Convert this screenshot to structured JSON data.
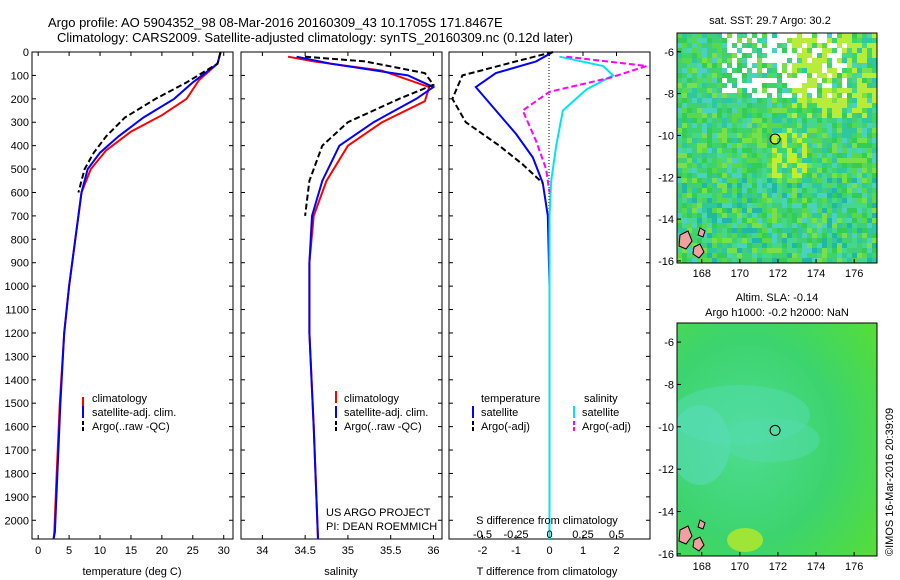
{
  "header": {
    "line1": "Argo profile: AO 5904352_98 08-Mar-2016 20160309_43 10.1705S 171.8467E",
    "line2": "Climatology: CARS2009. Satellite-adjusted climatology: synTS_20160309.nc (0.12d later)"
  },
  "colors": {
    "climatology": "#ff0000",
    "satellite": "#0000ff",
    "argo": "#000000",
    "satellite_salinity": "#00e5ee",
    "argo_salinity": "#ff00ff"
  },
  "chart_data": [
    {
      "type": "line",
      "panel": "temperature",
      "xlabel": "temperature (deg C)",
      "ylabel": "",
      "xlim": [
        -1,
        31.5
      ],
      "ylim": [
        2080,
        0
      ],
      "xticks": [
        "0",
        "5",
        "10",
        "15",
        "20",
        "25",
        "30"
      ],
      "yticks": [
        "0",
        "100",
        "200",
        "300",
        "400",
        "500",
        "600",
        "700",
        "800",
        "900",
        "1000",
        "1100",
        "1200",
        "1300",
        "1400",
        "1500",
        "1600",
        "1700",
        "1800",
        "1900",
        "2000"
      ],
      "legend": [
        "climatology",
        "satellite-adj. clim.",
        "Argo(..raw -QC)"
      ],
      "series": [
        {
          "name": "climatology",
          "style": "solid",
          "x": [
            29.5,
            29,
            26,
            24,
            20,
            15,
            11,
            8.5,
            7,
            6,
            5,
            4.2,
            3.5,
            3,
            2.6,
            2.5
          ],
          "y": [
            0,
            50,
            120,
            200,
            270,
            340,
            420,
            500,
            600,
            800,
            1000,
            1200,
            1500,
            1800,
            2050,
            2080
          ]
        },
        {
          "name": "satellite-adj. clim.",
          "style": "solid",
          "x": [
            29.5,
            29,
            25,
            22,
            17,
            13,
            10,
            8,
            7,
            6,
            5,
            4.2,
            3.6,
            3.1,
            2.7,
            2.5
          ],
          "y": [
            0,
            50,
            130,
            200,
            280,
            360,
            430,
            500,
            600,
            800,
            1000,
            1200,
            1500,
            1800,
            2050,
            2080
          ]
        },
        {
          "name": "Argo(..raw -QC)",
          "style": "dashed",
          "x": [
            29.5,
            29,
            24,
            19,
            14,
            11,
            9,
            7.5,
            6.5
          ],
          "y": [
            0,
            50,
            130,
            200,
            280,
            360,
            430,
            500,
            600
          ]
        }
      ]
    },
    {
      "type": "line",
      "panel": "salinity",
      "xlabel": "salinity",
      "ylabel": "",
      "xlim": [
        33.75,
        36.1
      ],
      "ylim": [
        2080,
        0
      ],
      "xticks": [
        "34",
        "34.5",
        "35",
        "35.5",
        "36"
      ],
      "legend": [
        "climatology",
        "satellite-adj. clim.",
        "Argo(..raw -QC)"
      ],
      "series": [
        {
          "name": "climatology",
          "style": "solid",
          "x": [
            34.3,
            34.6,
            35.4,
            35.95,
            35.9,
            35.4,
            35,
            34.75,
            34.6,
            34.55,
            34.55,
            34.6,
            34.65
          ],
          "y": [
            20,
            40,
            80,
            150,
            210,
            300,
            400,
            550,
            700,
            900,
            1200,
            1600,
            2080
          ]
        },
        {
          "name": "satellite-adj. clim.",
          "style": "solid",
          "x": [
            34.4,
            34.8,
            35.7,
            36.0,
            35.8,
            35.3,
            34.9,
            34.7,
            34.58,
            34.55,
            34.55,
            34.6,
            34.65
          ],
          "y": [
            20,
            50,
            100,
            150,
            200,
            300,
            400,
            550,
            700,
            900,
            1200,
            1600,
            2080
          ]
        },
        {
          "name": "Argo(..raw -QC)",
          "style": "dashed",
          "x": [
            34.5,
            35.2,
            35.9,
            36.0,
            35.6,
            35.0,
            34.7,
            34.55,
            34.5
          ],
          "y": [
            20,
            40,
            90,
            140,
            200,
            300,
            400,
            550,
            700
          ]
        }
      ],
      "annotation": [
        "US ARGO PROJECT",
        "PI: DEAN ROEMMICH"
      ]
    },
    {
      "type": "line",
      "panel": "difference",
      "xlabel": "T difference from climatology",
      "xlabel2": "S difference from climatology",
      "xlim": [
        -3,
        3
      ],
      "ylim": [
        2080,
        0
      ],
      "xticks": [
        "-2",
        "-1",
        "0",
        "1",
        "2"
      ],
      "xticks2": [
        "-0.5",
        "-0.25",
        "0",
        "0.25",
        "0.5"
      ],
      "legend_title_t": "temperature",
      "legend_title_s": "salinity",
      "legend": [
        "satellite",
        "Argo(-adj)",
        "satellite",
        "Argo(-adj)"
      ],
      "series": [
        {
          "name": "satellite",
          "quantity": "temperature",
          "style": "solid",
          "x": [
            0.1,
            -0.4,
            -1.6,
            -2.2,
            -1.6,
            -1.0,
            -0.5,
            -0.2,
            -0.05,
            0,
            0,
            0
          ],
          "y": [
            0,
            40,
            90,
            150,
            250,
            350,
            450,
            560,
            700,
            1000,
            1500,
            2080
          ]
        },
        {
          "name": "Argo(-adj)",
          "quantity": "temperature",
          "style": "dashed",
          "x": [
            0.1,
            -1.0,
            -2.6,
            -2.9,
            -2.5,
            -1.5,
            -0.8,
            -0.2
          ],
          "y": [
            0,
            40,
            100,
            200,
            300,
            400,
            480,
            560
          ]
        },
        {
          "name": "satellite",
          "quantity": "salinity",
          "style": "solid",
          "x": [
            0.3,
            1.6,
            1.9,
            1.1,
            0.4,
            0.2,
            0.05,
            0,
            0,
            0
          ],
          "y": [
            20,
            60,
            100,
            160,
            250,
            400,
            550,
            700,
            1200,
            2080
          ]
        },
        {
          "name": "Argo(-adj)",
          "quantity": "salinity",
          "style": "dashed",
          "x": [
            0.5,
            2.9,
            1.8,
            0,
            -0.8,
            -0.4,
            -0.1,
            0
          ],
          "y": [
            20,
            60,
            110,
            170,
            250,
            380,
            500,
            600
          ]
        }
      ]
    }
  ],
  "maps": {
    "sst": {
      "title": "sat. SST: 29.7 Argo: 30.2",
      "xticks": [
        "168",
        "170",
        "172",
        "174",
        "176"
      ],
      "yticks": [
        "-6",
        "-8",
        "-10",
        "-12",
        "-14",
        "-16"
      ],
      "xlim": [
        166.7,
        177.2
      ],
      "ylim": [
        -16.1,
        -5.1
      ],
      "float_lon": 171.85,
      "float_lat": -10.17
    },
    "sla": {
      "title1": "Altim. SLA: -0.14",
      "title2": "Argo h1000: -0.2 h2000: NaN",
      "xticks": [
        "168",
        "170",
        "172",
        "174",
        "176"
      ],
      "yticks": [
        "-6",
        "-8",
        "-10",
        "-12",
        "-14",
        "-16"
      ],
      "xlim": [
        166.7,
        177.2
      ],
      "ylim": [
        -16.1,
        -5.1
      ],
      "float_lon": 171.85,
      "float_lat": -10.17
    }
  },
  "footer": "©IMOS 16-Mar-2016 20:39:09"
}
